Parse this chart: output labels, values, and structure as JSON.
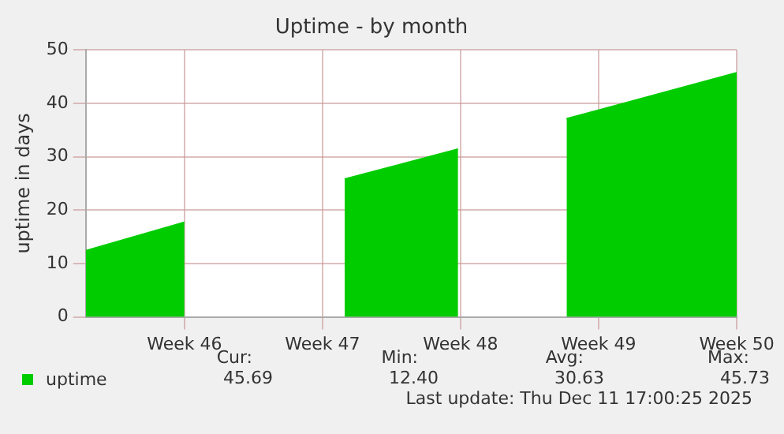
{
  "chart_data": {
    "type": "area",
    "title": "Uptime - by month",
    "ylabel": "uptime in days",
    "x": [
      "2025-11-05",
      "2025-11-10",
      "2025-11-13",
      "2025-11-18T03:00",
      "2025-11-23T21:00",
      "2025-11-27",
      "2025-11-29T09:00",
      "2025-12-08"
    ],
    "series": [
      {
        "name": "uptime",
        "color": "#00cc00",
        "values": [
          12.4,
          17.7,
          null,
          25.8,
          31.4,
          null,
          37.1,
          45.7
        ]
      }
    ],
    "xlim": [
      "2025-11-05",
      "2025-12-08"
    ],
    "xticks": [
      {
        "value": "2025-11-10",
        "label": "Week 46"
      },
      {
        "value": "2025-11-17",
        "label": "Week 47"
      },
      {
        "value": "2025-11-24",
        "label": "Week 48"
      },
      {
        "value": "2025-12-01",
        "label": "Week 49"
      },
      {
        "value": "2025-12-08",
        "label": "Week 50"
      }
    ],
    "ylim": [
      0,
      50
    ],
    "yticks": [
      0,
      10,
      20,
      30,
      40,
      50
    ],
    "grid": true,
    "legend": "bottom",
    "annotations": [
      "Cur:",
      "Min:",
      "Avg:",
      "Max:",
      "45.69",
      "12.40",
      "30.63",
      "45.73",
      "Last update: Thu Dec 11 17:00:25 2025"
    ]
  }
}
